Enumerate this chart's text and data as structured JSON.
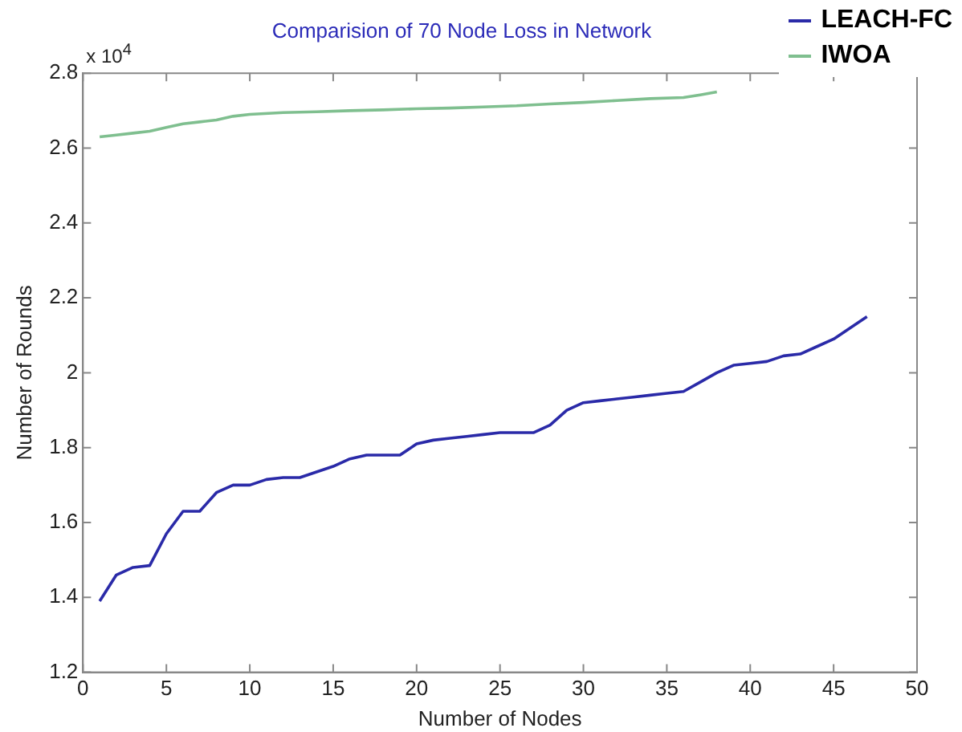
{
  "chart_data": {
    "type": "line",
    "title": "Comparision of 70 Node Loss in Network",
    "xlabel": "Number of Nodes",
    "ylabel": "Number of Rounds",
    "annotations": [
      "x 10$^{4}$"
    ],
    "series": [
      {
        "name": "LEACH-FC",
        "color": "#2a2aa8",
        "x": [
          1,
          2,
          3,
          4,
          5,
          6,
          7,
          8,
          9,
          10,
          11,
          12,
          13,
          14,
          15,
          16,
          17,
          18,
          19,
          20,
          21,
          22,
          23,
          24,
          25,
          26,
          27,
          28,
          29,
          30,
          31,
          32,
          33,
          34,
          35,
          36,
          37,
          38,
          39,
          40,
          41,
          42,
          43,
          44,
          45,
          46,
          47
        ],
        "values": [
          1.39,
          1.46,
          1.48,
          1.485,
          1.57,
          1.63,
          1.63,
          1.68,
          1.7,
          1.7,
          1.715,
          1.72,
          1.72,
          1.735,
          1.75,
          1.77,
          1.78,
          1.78,
          1.78,
          1.81,
          1.82,
          1.825,
          1.83,
          1.835,
          1.84,
          1.84,
          1.84,
          1.86,
          1.9,
          1.92,
          1.925,
          1.93,
          1.935,
          1.94,
          1.945,
          1.95,
          1.975,
          2.0,
          2.02,
          2.025,
          2.03,
          2.045,
          2.05,
          2.07,
          2.09,
          2.12,
          2.15
        ]
      },
      {
        "name": "IWOA",
        "color": "#7fbf8f",
        "x": [
          1,
          2,
          3,
          4,
          5,
          6,
          7,
          8,
          9,
          10,
          12,
          14,
          16,
          18,
          20,
          22,
          24,
          26,
          28,
          30,
          32,
          34,
          36,
          37,
          38
        ],
        "values": [
          2.63,
          2.635,
          2.64,
          2.645,
          2.655,
          2.665,
          2.67,
          2.675,
          2.685,
          2.69,
          2.695,
          2.697,
          2.7,
          2.702,
          2.705,
          2.707,
          2.71,
          2.713,
          2.718,
          2.722,
          2.727,
          2.732,
          2.735,
          2.742,
          2.75
        ]
      }
    ],
    "xlim": [
      0,
      50
    ],
    "xticks": [
      0,
      5,
      10,
      15,
      20,
      25,
      30,
      35,
      40,
      45,
      50
    ],
    "ylim": [
      1.2,
      2.8
    ],
    "yticks": [
      1.2,
      1.4,
      1.6,
      1.8,
      2,
      2.2,
      2.4,
      2.6,
      2.8
    ],
    "grid": false,
    "legend": "top right",
    "marker": "none",
    "line_style": "solid"
  }
}
